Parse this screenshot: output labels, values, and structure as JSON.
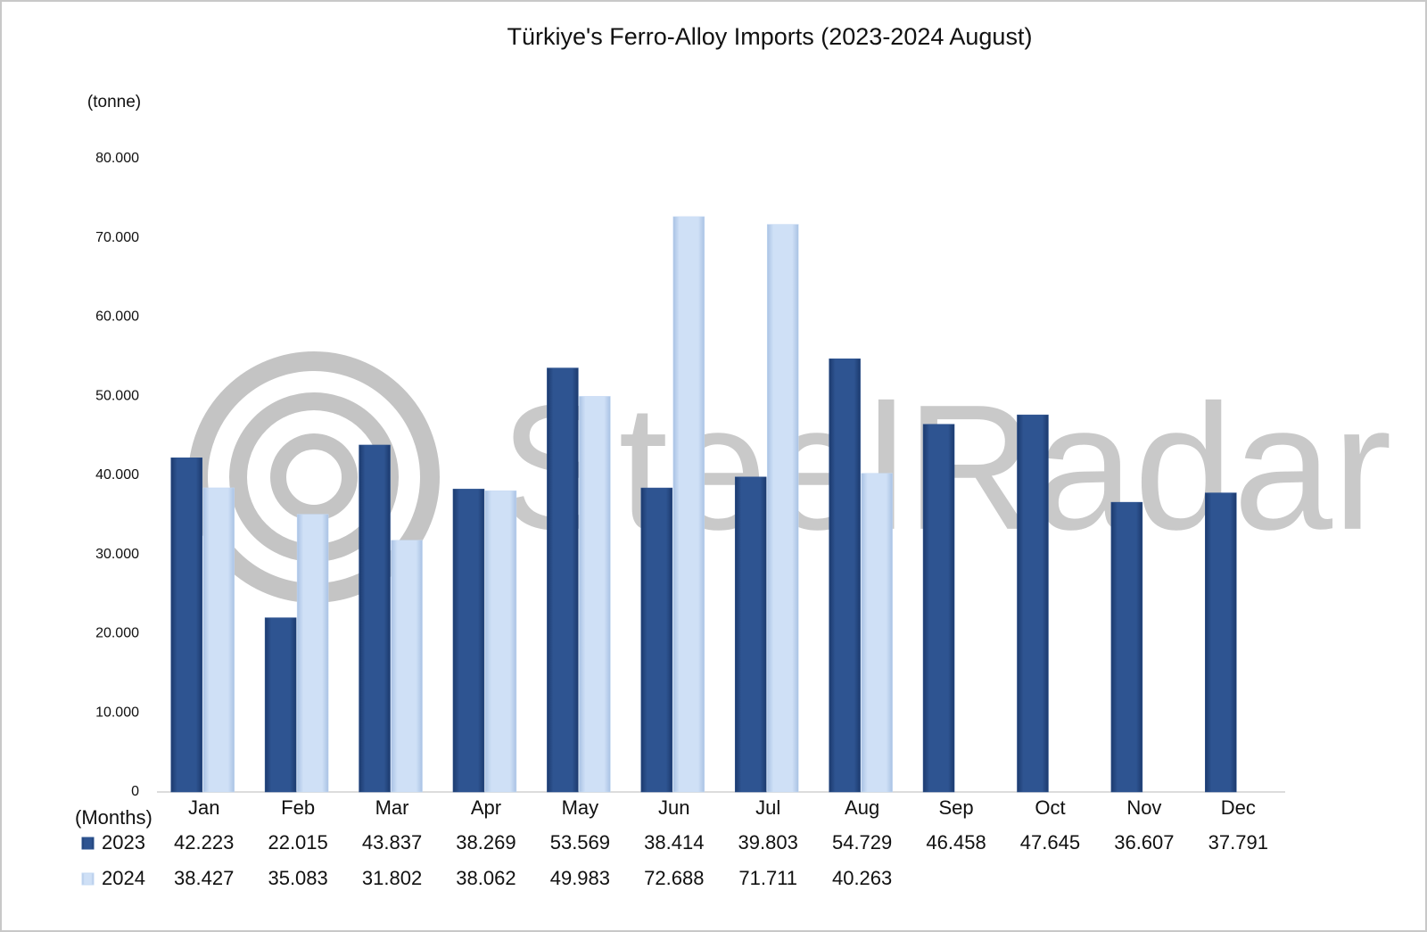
{
  "chart_data": {
    "type": "bar",
    "title": "Türkiye's Ferro-Alloy Imports (2023-2024 August)",
    "y_axis_label": "(tonne)",
    "x_axis_label": "(Months)",
    "watermark": "SteelRadar",
    "categories": [
      "Jan",
      "Feb",
      "Mar",
      "Apr",
      "May",
      "Jun",
      "Jul",
      "Aug",
      "Sep",
      "Oct",
      "Nov",
      "Dec"
    ],
    "series": [
      {
        "name": "2023",
        "color": "#2e5491",
        "values": [
          42223,
          22015,
          43837,
          38269,
          53569,
          38414,
          39803,
          54729,
          46458,
          47645,
          36607,
          37791
        ],
        "value_labels": [
          "42.223",
          "22.015",
          "43.837",
          "38.269",
          "53.569",
          "38.414",
          "39.803",
          "54.729",
          "46.458",
          "47.645",
          "36.607",
          "37.791"
        ]
      },
      {
        "name": "2024",
        "color": "#c6daf3",
        "values": [
          38427,
          35083,
          31802,
          38062,
          49983,
          72688,
          71711,
          40263,
          null,
          null,
          null,
          null
        ],
        "value_labels": [
          "38.427",
          "35.083",
          "31.802",
          "38.062",
          "49.983",
          "72.688",
          "71.711",
          "40.263",
          null,
          null,
          null,
          null
        ]
      }
    ],
    "ylim": [
      0,
      80000
    ],
    "yticks": [
      0,
      {
        "value": 10000,
        "label": "10.000"
      },
      {
        "value": 20000,
        "label": "20.000"
      },
      {
        "value": 30000,
        "label": "30.000"
      },
      {
        "value": 40000,
        "label": "40.000"
      },
      {
        "value": 50000,
        "label": "50.000"
      },
      {
        "value": 60000,
        "label": "60.000"
      },
      {
        "value": 70000,
        "label": "70.000"
      },
      {
        "value": 80000,
        "label": "80.000"
      }
    ],
    "grid": false
  }
}
